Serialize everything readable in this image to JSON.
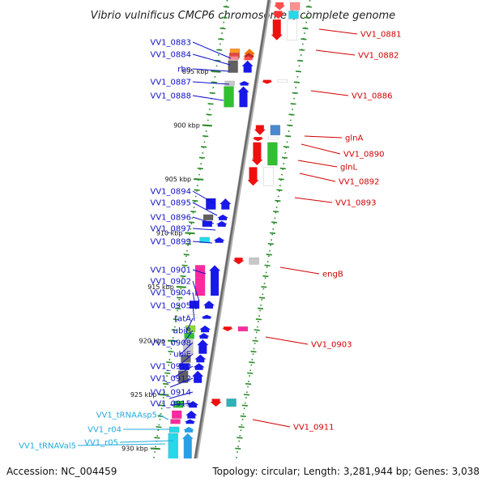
{
  "title": "Vibrio vulnificus CMCP6 chromosome I, complete genome",
  "footer": {
    "accession": "Accession: NC_004459",
    "summary": "Topology: circular; Length: 3,281,944 bp; Genes: 3,038"
  },
  "colors": {
    "left_label": "#1010c8",
    "right_label": "#d00000",
    "rna_label": "#22aadd",
    "tick": "#2a8a2a",
    "backbone": "#888888"
  },
  "ticks": [
    {
      "label": "895 kbp",
      "pos": 895
    },
    {
      "label": "900 kbp",
      "pos": 900
    },
    {
      "label": "905 kbp",
      "pos": 905
    },
    {
      "label": "910 kbp",
      "pos": 910
    },
    {
      "label": "915 kbp",
      "pos": 915
    },
    {
      "label": "920 kbp",
      "pos": 920
    },
    {
      "label": "925 kbp",
      "pos": 925
    },
    {
      "label": "930 kbp",
      "pos": 930
    }
  ],
  "left_labels": [
    {
      "text": "VV1_0883",
      "type": "gene"
    },
    {
      "text": "VV1_0884",
      "type": "gene"
    },
    {
      "text": "rbn",
      "type": "gene"
    },
    {
      "text": "VV1_0887",
      "type": "gene"
    },
    {
      "text": "VV1_0888",
      "type": "gene"
    },
    {
      "text": "VV1_0894",
      "type": "gene"
    },
    {
      "text": "VV1_0895",
      "type": "gene"
    },
    {
      "text": "VV1_0896",
      "type": "gene"
    },
    {
      "text": "VV1_0897",
      "type": "gene"
    },
    {
      "text": "VV1_0899",
      "type": "gene"
    },
    {
      "text": "VV1_0901",
      "type": "gene"
    },
    {
      "text": "VV1_0902",
      "type": "gene"
    },
    {
      "text": "VV1_0904",
      "type": "gene"
    },
    {
      "text": "VV1_0905",
      "type": "gene"
    },
    {
      "text": "tatA",
      "type": "gene"
    },
    {
      "text": "ubiB",
      "type": "gene"
    },
    {
      "text": "VV1_0908",
      "type": "gene"
    },
    {
      "text": "ubiE",
      "type": "gene"
    },
    {
      "text": "VV1_0910",
      "type": "gene"
    },
    {
      "text": "VV1_0912",
      "type": "gene"
    },
    {
      "text": "VV1_0914",
      "type": "gene"
    },
    {
      "text": "VV1_0915",
      "type": "gene"
    },
    {
      "text": "VV1_tRNAAsp5",
      "type": "rna"
    },
    {
      "text": "VV1_r04",
      "type": "rna"
    },
    {
      "text": "VV1_r05",
      "type": "rna"
    },
    {
      "text": "VV1_tRNAVal5",
      "type": "rna"
    }
  ],
  "right_labels": [
    {
      "text": "VV1_0881"
    },
    {
      "text": "VV1_0882"
    },
    {
      "text": "VV1_0886"
    },
    {
      "text": "glnA"
    },
    {
      "text": "VV1_0890"
    },
    {
      "text": "glnL"
    },
    {
      "text": "VV1_0892"
    },
    {
      "text": "VV1_0893"
    },
    {
      "text": "engB"
    },
    {
      "text": "VV1_0903"
    },
    {
      "text": "VV1_0911"
    }
  ],
  "features": [
    {
      "strand": "+",
      "pos": 892.9,
      "len": 0.9,
      "fill": "#ff9a28",
      "cds": "#f07808"
    },
    {
      "strand": "+",
      "pos": 893.3,
      "len": 0.6,
      "fill": "#e04848",
      "cds": "#c02828"
    },
    {
      "strand": "+",
      "pos": 893.6,
      "len": 0.4,
      "fill": "#ff8888",
      "cds": "#ff5050"
    },
    {
      "strand": "+",
      "pos": 894.0,
      "len": 1.2,
      "fill": "#606060",
      "cds": "#1818e8"
    },
    {
      "strand": "+",
      "pos": 895.9,
      "len": 0.5,
      "fill": "#c8c8c8",
      "cds": "#1818e8"
    },
    {
      "strand": "+",
      "pos": 896.4,
      "len": 2.0,
      "fill": "#30c030",
      "cds": "#1818e8"
    },
    {
      "strand": "-",
      "pos": 888.6,
      "len": 0.8,
      "fill": "#ff9090",
      "cds": "#ff5050"
    },
    {
      "strand": "-",
      "pos": 889.4,
      "len": 0.8,
      "fill": "#28d8e8",
      "cds": "#ff3030"
    },
    {
      "strand": "-",
      "pos": 890.2,
      "len": 2.0,
      "fill": "#ffffff",
      "cds": "#ee1010"
    },
    {
      "strand": "-",
      "pos": 895.8,
      "len": 0.2,
      "fill": "#ffffff",
      "cds": "#ee1010"
    },
    {
      "strand": "-",
      "pos": 900.0,
      "len": 1.0,
      "fill": "#4a88d0",
      "cds": "#ee1010"
    },
    {
      "strand": "-",
      "pos": 901.1,
      "len": 0.2,
      "fill": "#ffffff",
      "cds": "#ee1010"
    },
    {
      "strand": "-",
      "pos": 901.6,
      "len": 2.2,
      "fill": "#30c030",
      "cds": "#ee1010"
    },
    {
      "strand": "-",
      "pos": 903.9,
      "len": 1.8,
      "fill": "#ffffff",
      "cds": "#ee1010"
    },
    {
      "strand": "+",
      "pos": 906.8,
      "len": 1.1,
      "fill": "#1818e8",
      "cds": "#1818e8"
    },
    {
      "strand": "+",
      "pos": 908.3,
      "len": 0.6,
      "fill": "#606060",
      "cds": "#1818e8"
    },
    {
      "strand": "+",
      "pos": 908.9,
      "len": 0.6,
      "fill": "#1818e8",
      "cds": "#1818e8"
    },
    {
      "strand": "+",
      "pos": 910.4,
      "len": 0.6,
      "fill": "#28d8e8",
      "cds": "#1818e8"
    },
    {
      "strand": "-",
      "pos": 912.3,
      "len": 0.7,
      "fill": "#c8c8c8",
      "cds": "#ee1010"
    },
    {
      "strand": "+",
      "pos": 913.0,
      "len": 2.9,
      "fill": "#ff2aa0",
      "cds": "#1818e8"
    },
    {
      "strand": "+",
      "pos": 916.3,
      "len": 0.8,
      "fill": "#1818e8",
      "cds": "#1818e8"
    },
    {
      "strand": "+",
      "pos": 917.6,
      "len": 0.4,
      "fill": "#ffffff",
      "cds": "#1818e8"
    },
    {
      "strand": "+",
      "pos": 918.6,
      "len": 0.7,
      "fill": "#8adc30",
      "cds": "#1818e8"
    },
    {
      "strand": "+",
      "pos": 919.3,
      "len": 0.6,
      "fill": "#30c030",
      "cds": "#1818e8"
    },
    {
      "strand": "+",
      "pos": 919.9,
      "len": 1.4,
      "fill": "#c8c8c8",
      "cds": "#1818e8"
    },
    {
      "strand": "+",
      "pos": 921.3,
      "len": 0.8,
      "fill": "#707070",
      "cds": "#1818e8"
    },
    {
      "strand": "+",
      "pos": 922.1,
      "len": 0.7,
      "fill": "#1818e8",
      "cds": "#1818e8"
    },
    {
      "strand": "+",
      "pos": 922.8,
      "len": 1.2,
      "fill": "#606060",
      "cds": "#1818e8"
    },
    {
      "strand": "-",
      "pos": 918.7,
      "len": 0.5,
      "fill": "#ff2aa0",
      "cds": "#ee1010"
    },
    {
      "strand": "+",
      "pos": 925.6,
      "len": 0.7,
      "fill": "#30c030",
      "cds": "#1818e8"
    },
    {
      "strand": "+",
      "pos": 926.5,
      "len": 0.8,
      "fill": "#ff2aa0",
      "cds": "#1818e8"
    },
    {
      "strand": "+",
      "pos": 927.3,
      "len": 0.5,
      "fill": "#ff2aa0",
      "cds": "#1818e8"
    },
    {
      "strand": "+",
      "pos": 928.0,
      "len": 0.6,
      "fill": "#28d8e8",
      "cds": "#28a0e8"
    },
    {
      "strand": "+",
      "pos": 928.6,
      "len": 2.6,
      "fill": "#28d8e8",
      "cds": "#28a0e8"
    },
    {
      "strand": "-",
      "pos": 925.4,
      "len": 0.8,
      "fill": "#30b0b8",
      "cds": "#ee1010"
    }
  ]
}
